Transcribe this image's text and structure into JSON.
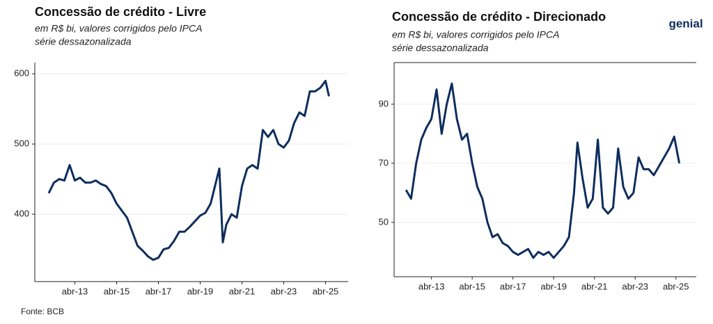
{
  "chart_data": [
    {
      "type": "line",
      "title": "Concessão de crédito - Livre",
      "subtitle": [
        "em R$ bi, valores corrigidos pelo IPCA",
        "série dessazonalizada"
      ],
      "color": "#0d2d5e",
      "x": [
        "2012-01",
        "2012-04",
        "2012-07",
        "2012-10",
        "2013-01",
        "2013-04",
        "2013-07",
        "2013-10",
        "2014-01",
        "2014-04",
        "2014-07",
        "2014-10",
        "2015-01",
        "2015-04",
        "2015-07",
        "2015-10",
        "2016-01",
        "2016-04",
        "2016-07",
        "2016-10",
        "2017-01",
        "2017-04",
        "2017-07",
        "2017-10",
        "2018-01",
        "2018-04",
        "2018-07",
        "2018-10",
        "2019-01",
        "2019-04",
        "2019-07",
        "2019-10",
        "2020-01",
        "2020-03",
        "2020-05",
        "2020-07",
        "2020-10",
        "2021-01",
        "2021-04",
        "2021-07",
        "2021-10",
        "2022-01",
        "2022-04",
        "2022-07",
        "2022-10",
        "2023-01",
        "2023-04",
        "2023-07",
        "2023-10",
        "2024-01",
        "2024-04",
        "2024-07",
        "2024-10",
        "2025-01",
        "2025-04",
        "2025-06"
      ],
      "values": [
        430,
        445,
        450,
        448,
        470,
        448,
        452,
        445,
        445,
        448,
        443,
        440,
        430,
        415,
        405,
        395,
        375,
        355,
        348,
        340,
        335,
        338,
        350,
        352,
        362,
        375,
        375,
        382,
        390,
        398,
        402,
        415,
        445,
        465,
        360,
        385,
        400,
        395,
        440,
        465,
        470,
        465,
        520,
        510,
        520,
        500,
        495,
        505,
        530,
        545,
        540,
        575,
        575,
        580,
        590,
        568
      ],
      "xlim": [
        "2011-05",
        "2026-05"
      ],
      "xticks": [
        {
          "value": "2013-04",
          "label": "abr-13"
        },
        {
          "value": "2015-04",
          "label": "abr-15"
        },
        {
          "value": "2017-04",
          "label": "abr-17"
        },
        {
          "value": "2019-04",
          "label": "abr-19"
        },
        {
          "value": "2021-04",
          "label": "abr-21"
        },
        {
          "value": "2023-04",
          "label": "abr-23"
        },
        {
          "value": "2025-04",
          "label": "abr-25"
        }
      ],
      "ylim": [
        304,
        616
      ],
      "yticks": [
        400,
        500,
        600
      ],
      "grid": true
    },
    {
      "type": "line",
      "title": "Concessão de crédito - Direcionado",
      "subtitle": [
        "em R$ bi, valores corrigidos pelo IPCA",
        "série dessazonalizada"
      ],
      "color": "#0d2d5e",
      "x": [
        "2012-01",
        "2012-04",
        "2012-07",
        "2012-10",
        "2013-01",
        "2013-04",
        "2013-07",
        "2013-10",
        "2014-01",
        "2014-04",
        "2014-07",
        "2014-10",
        "2015-01",
        "2015-04",
        "2015-07",
        "2015-10",
        "2016-01",
        "2016-04",
        "2016-07",
        "2016-10",
        "2017-01",
        "2017-04",
        "2017-07",
        "2017-10",
        "2018-01",
        "2018-04",
        "2018-07",
        "2018-10",
        "2019-01",
        "2019-04",
        "2019-07",
        "2019-10",
        "2020-01",
        "2020-04",
        "2020-06",
        "2020-09",
        "2020-12",
        "2021-03",
        "2021-06",
        "2021-09",
        "2021-12",
        "2022-03",
        "2022-06",
        "2022-09",
        "2022-12",
        "2023-03",
        "2023-06",
        "2023-09",
        "2023-12",
        "2024-03",
        "2024-06",
        "2024-09",
        "2024-12",
        "2025-03",
        "2025-06"
      ],
      "values": [
        61,
        58,
        70,
        78,
        82,
        85,
        95,
        80,
        90,
        97,
        85,
        78,
        80,
        70,
        62,
        58,
        50,
        45,
        46,
        43,
        42,
        40,
        39,
        40,
        41,
        38,
        40,
        39,
        40,
        38,
        40,
        42,
        45,
        60,
        77,
        65,
        55,
        58,
        78,
        55,
        53,
        55,
        75,
        62,
        58,
        60,
        72,
        68,
        68,
        66,
        69,
        72,
        75,
        79,
        70
      ],
      "xlim": [
        "2011-06",
        "2026-04"
      ],
      "xticks": [
        {
          "value": "2013-04",
          "label": "abr-13"
        },
        {
          "value": "2015-04",
          "label": "abr-15"
        },
        {
          "value": "2017-04",
          "label": "abr-17"
        },
        {
          "value": "2019-04",
          "label": "abr-19"
        },
        {
          "value": "2021-04",
          "label": "abr-21"
        },
        {
          "value": "2023-04",
          "label": "abr-23"
        },
        {
          "value": "2025-04",
          "label": "abr-25"
        }
      ],
      "ylim": [
        31.6,
        104.1
      ],
      "yticks": [
        50,
        70,
        90
      ],
      "grid": true
    }
  ],
  "source": "Fonte: BCB",
  "logo": "genial"
}
